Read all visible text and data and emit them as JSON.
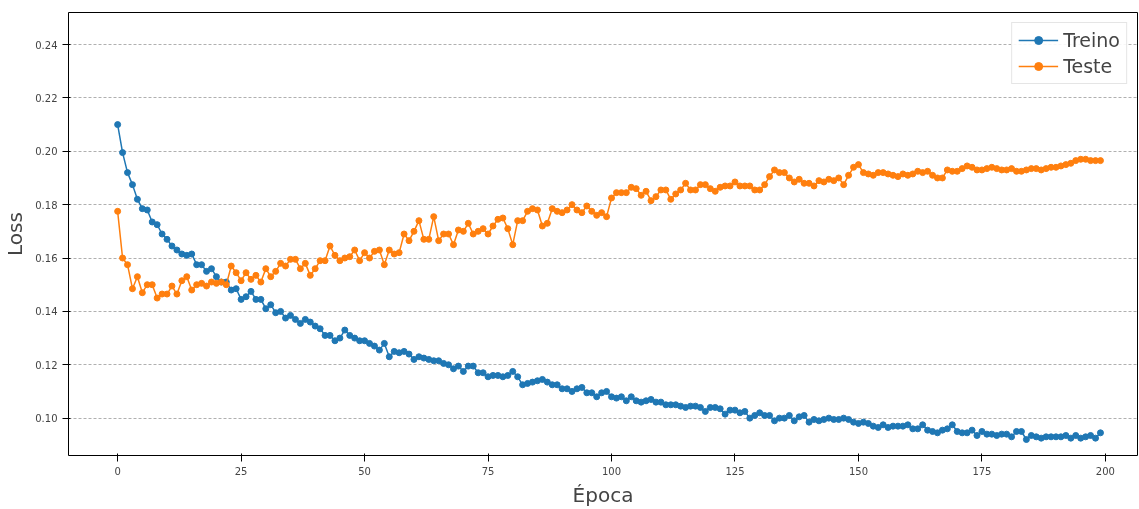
{
  "chart_data": {
    "type": "line",
    "xlabel": "Época",
    "ylabel": "Loss",
    "x": [
      0,
      1,
      2,
      3,
      4,
      5,
      6,
      7,
      8,
      9,
      10,
      11,
      12,
      13,
      14,
      15,
      16,
      17,
      18,
      19,
      20,
      21,
      22,
      23,
      24,
      25,
      26,
      27,
      28,
      29,
      30,
      31,
      32,
      33,
      34,
      35,
      36,
      37,
      38,
      39,
      40,
      41,
      42,
      43,
      44,
      45,
      46,
      47,
      48,
      49,
      50,
      51,
      52,
      53,
      54,
      55,
      56,
      57,
      58,
      59,
      60,
      61,
      62,
      63,
      64,
      65,
      66,
      67,
      68,
      69,
      70,
      71,
      72,
      73,
      74,
      75,
      76,
      77,
      78,
      79,
      80,
      81,
      82,
      83,
      84,
      85,
      86,
      87,
      88,
      89,
      90,
      91,
      92,
      93,
      94,
      95,
      96,
      97,
      98,
      99,
      100,
      101,
      102,
      103,
      104,
      105,
      106,
      107,
      108,
      109,
      110,
      111,
      112,
      113,
      114,
      115,
      116,
      117,
      118,
      119,
      120,
      121,
      122,
      123,
      124,
      125,
      126,
      127,
      128,
      129,
      130,
      131,
      132,
      133,
      134,
      135,
      136,
      137,
      138,
      139,
      140,
      141,
      142,
      143,
      144,
      145,
      146,
      147,
      148,
      149,
      150,
      151,
      152,
      153,
      154,
      155,
      156,
      157,
      158,
      159,
      160,
      161,
      162,
      163,
      164,
      165,
      166,
      167,
      168,
      169,
      170,
      171,
      172,
      173,
      174,
      175,
      176,
      177,
      178,
      179,
      180,
      181,
      182,
      183,
      184,
      185,
      186,
      187,
      188,
      189,
      190,
      191,
      192,
      193,
      194,
      195,
      196,
      197,
      198,
      199
    ],
    "series": [
      {
        "name": "Treino",
        "color": "#1f77b4",
        "values": [
          0.21,
          0.1995,
          0.192,
          0.1875,
          0.182,
          0.1785,
          0.178,
          0.1735,
          0.1725,
          0.169,
          0.167,
          0.1645,
          0.163,
          0.1615,
          0.161,
          0.1615,
          0.1575,
          0.1575,
          0.155,
          0.156,
          0.153,
          0.151,
          0.151,
          0.148,
          0.1485,
          0.1445,
          0.1455,
          0.1475,
          0.1445,
          0.1445,
          0.141,
          0.1425,
          0.1395,
          0.14,
          0.1375,
          0.1385,
          0.137,
          0.1355,
          0.137,
          0.136,
          0.1345,
          0.1335,
          0.131,
          0.131,
          0.129,
          0.13,
          0.133,
          0.131,
          0.13,
          0.129,
          0.129,
          0.128,
          0.127,
          0.1255,
          0.128,
          0.123,
          0.125,
          0.1245,
          0.125,
          0.124,
          0.122,
          0.123,
          0.1225,
          0.122,
          0.1215,
          0.1215,
          0.1205,
          0.12,
          0.1185,
          0.1195,
          0.1175,
          0.1195,
          0.1195,
          0.117,
          0.117,
          0.1155,
          0.116,
          0.116,
          0.1155,
          0.116,
          0.1175,
          0.1155,
          0.1125,
          0.113,
          0.1135,
          0.114,
          0.1145,
          0.1135,
          0.1125,
          0.1125,
          0.111,
          0.111,
          0.11,
          0.111,
          0.1115,
          0.1095,
          0.1095,
          0.108,
          0.1095,
          0.11,
          0.108,
          0.1075,
          0.108,
          0.1065,
          0.108,
          0.1065,
          0.106,
          0.1065,
          0.107,
          0.106,
          0.106,
          0.105,
          0.105,
          0.105,
          0.1045,
          0.104,
          0.1045,
          0.1045,
          0.104,
          0.1025,
          0.104,
          0.104,
          0.1035,
          0.1015,
          0.103,
          0.103,
          0.102,
          0.1025,
          0.1,
          0.101,
          0.102,
          0.101,
          0.101,
          0.099,
          0.1,
          0.1,
          0.101,
          0.099,
          0.1005,
          0.101,
          0.0985,
          0.0995,
          0.099,
          0.0995,
          0.1,
          0.0995,
          0.0995,
          0.1,
          0.0995,
          0.0985,
          0.098,
          0.0985,
          0.098,
          0.097,
          0.0965,
          0.0975,
          0.0965,
          0.097,
          0.097,
          0.097,
          0.0975,
          0.096,
          0.096,
          0.0975,
          0.0955,
          0.095,
          0.0945,
          0.0955,
          0.096,
          0.0975,
          0.095,
          0.0945,
          0.0945,
          0.0955,
          0.0935,
          0.095,
          0.094,
          0.094,
          0.0935,
          0.094,
          0.094,
          0.093,
          0.095,
          0.095,
          0.092,
          0.0935,
          0.093,
          0.0925,
          0.093,
          0.093,
          0.093,
          0.093,
          0.0935,
          0.0925,
          0.0935,
          0.0925,
          0.093,
          0.0935,
          0.0925,
          0.0945
        ]
      },
      {
        "name": "Teste",
        "color": "#ff7f0e",
        "values": [
          0.1775,
          0.16,
          0.1575,
          0.1485,
          0.153,
          0.147,
          0.15,
          0.15,
          0.145,
          0.1465,
          0.1465,
          0.1495,
          0.1465,
          0.1515,
          0.153,
          0.148,
          0.15,
          0.1505,
          0.1495,
          0.151,
          0.1505,
          0.151,
          0.15,
          0.157,
          0.1545,
          0.1515,
          0.1545,
          0.152,
          0.1535,
          0.151,
          0.156,
          0.153,
          0.155,
          0.158,
          0.157,
          0.1595,
          0.1595,
          0.156,
          0.158,
          0.1535,
          0.156,
          0.159,
          0.159,
          0.1645,
          0.161,
          0.159,
          0.16,
          0.1605,
          0.163,
          0.159,
          0.162,
          0.16,
          0.1625,
          0.163,
          0.1575,
          0.163,
          0.1615,
          0.162,
          0.169,
          0.1665,
          0.17,
          0.174,
          0.167,
          0.167,
          0.1755,
          0.1665,
          0.169,
          0.169,
          0.165,
          0.1705,
          0.17,
          0.173,
          0.169,
          0.17,
          0.171,
          0.169,
          0.172,
          0.1745,
          0.175,
          0.171,
          0.165,
          0.174,
          0.174,
          0.1775,
          0.1785,
          0.178,
          0.172,
          0.173,
          0.1785,
          0.1775,
          0.177,
          0.178,
          0.18,
          0.178,
          0.177,
          0.1795,
          0.1775,
          0.176,
          0.177,
          0.1755,
          0.1825,
          0.1845,
          0.1845,
          0.1845,
          0.1865,
          0.186,
          0.1835,
          0.185,
          0.1815,
          0.183,
          0.1855,
          0.1855,
          0.182,
          0.184,
          0.1855,
          0.188,
          0.1855,
          0.1855,
          0.1875,
          0.1875,
          0.186,
          0.185,
          0.1865,
          0.187,
          0.187,
          0.1885,
          0.187,
          0.187,
          0.187,
          0.1855,
          0.1855,
          0.1875,
          0.1905,
          0.193,
          0.192,
          0.192,
          0.19,
          0.1885,
          0.1895,
          0.188,
          0.188,
          0.187,
          0.189,
          0.1885,
          0.1895,
          0.189,
          0.19,
          0.1875,
          0.191,
          0.194,
          0.195,
          0.192,
          0.1915,
          0.191,
          0.192,
          0.192,
          0.1915,
          0.191,
          0.1905,
          0.1915,
          0.191,
          0.1915,
          0.1925,
          0.192,
          0.1925,
          0.191,
          0.19,
          0.19,
          0.193,
          0.1925,
          0.1925,
          0.1935,
          0.1945,
          0.194,
          0.193,
          0.193,
          0.1935,
          0.194,
          0.1935,
          0.193,
          0.193,
          0.1935,
          0.1925,
          0.1925,
          0.193,
          0.1935,
          0.1935,
          0.193,
          0.1935,
          0.194,
          0.194,
          0.1945,
          0.195,
          0.1955,
          0.1965,
          0.197,
          0.197,
          0.1965,
          0.1965,
          0.1965
        ]
      }
    ],
    "xlim": [
      -9.95,
      206.5
    ],
    "ylim": [
      0.086,
      0.252
    ],
    "xticks": [
      0,
      25,
      50,
      75,
      100,
      125,
      150,
      175,
      200
    ],
    "yticks": [
      {
        "value": 0.1,
        "label": "0.10"
      },
      {
        "value": 0.12,
        "label": "0.12"
      },
      {
        "value": 0.14,
        "label": "0.14"
      },
      {
        "value": 0.16,
        "label": "0.16"
      },
      {
        "value": 0.18,
        "label": "0.18"
      },
      {
        "value": 0.2,
        "label": "0.20"
      },
      {
        "value": 0.22,
        "label": "0.22"
      },
      {
        "value": 0.24,
        "label": "0.24"
      }
    ],
    "grid": "y",
    "legend": "top right",
    "marker": "circle",
    "line_style": "solid"
  }
}
